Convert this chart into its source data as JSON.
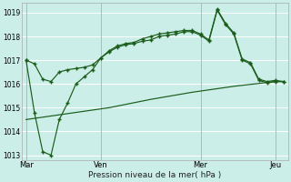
{
  "background_color": "#cceee8",
  "grid_color": "#ffffff",
  "line_color": "#1a5c1a",
  "title": "Pression niveau de la mer( hPa )",
  "yticks": [
    1013,
    1014,
    1015,
    1016,
    1017,
    1018,
    1019
  ],
  "ylim": [
    1012.8,
    1019.4
  ],
  "xtick_labels": [
    "Mar",
    "Ven",
    "Mer",
    "Jeu"
  ],
  "xtick_positions": [
    0,
    9,
    21,
    30
  ],
  "line1_x": [
    0,
    1,
    2,
    3,
    4,
    5,
    6,
    7,
    8,
    9,
    10,
    11,
    12,
    13,
    14,
    15,
    16,
    17,
    18,
    19,
    20,
    21,
    22,
    23,
    24,
    25,
    26,
    27,
    28,
    29,
    30,
    31
  ],
  "line1": [
    1017.0,
    1016.85,
    1016.2,
    1016.1,
    1016.5,
    1016.6,
    1016.65,
    1016.7,
    1016.8,
    1017.1,
    1017.35,
    1017.55,
    1017.65,
    1017.7,
    1017.8,
    1017.85,
    1018.0,
    1018.05,
    1018.1,
    1018.2,
    1018.2,
    1018.05,
    1017.8,
    1019.1,
    1018.5,
    1018.1,
    1017.0,
    1016.85,
    1016.15,
    1016.05,
    1016.1,
    1016.1
  ],
  "line2_x": [
    0,
    1,
    2,
    3,
    4,
    5,
    6,
    7,
    8,
    9,
    10,
    11,
    12,
    13,
    14,
    15,
    16,
    17,
    18,
    19,
    20,
    21,
    22,
    23,
    24,
    25,
    26,
    27,
    28,
    29,
    30,
    31
  ],
  "line2": [
    1017.0,
    1014.8,
    1013.15,
    1013.0,
    1014.5,
    1015.2,
    1016.0,
    1016.3,
    1016.6,
    1017.1,
    1017.4,
    1017.6,
    1017.7,
    1017.75,
    1017.9,
    1018.0,
    1018.1,
    1018.15,
    1018.2,
    1018.25,
    1018.25,
    1018.1,
    1017.85,
    1019.15,
    1018.55,
    1018.15,
    1017.05,
    1016.9,
    1016.2,
    1016.1,
    1016.15,
    1016.1
  ],
  "line3_x": [
    0,
    5,
    10,
    15,
    20,
    25,
    30,
    31
  ],
  "line3": [
    1014.5,
    1014.75,
    1015.0,
    1015.35,
    1015.65,
    1015.9,
    1016.1,
    1016.1
  ],
  "n_points": 32
}
